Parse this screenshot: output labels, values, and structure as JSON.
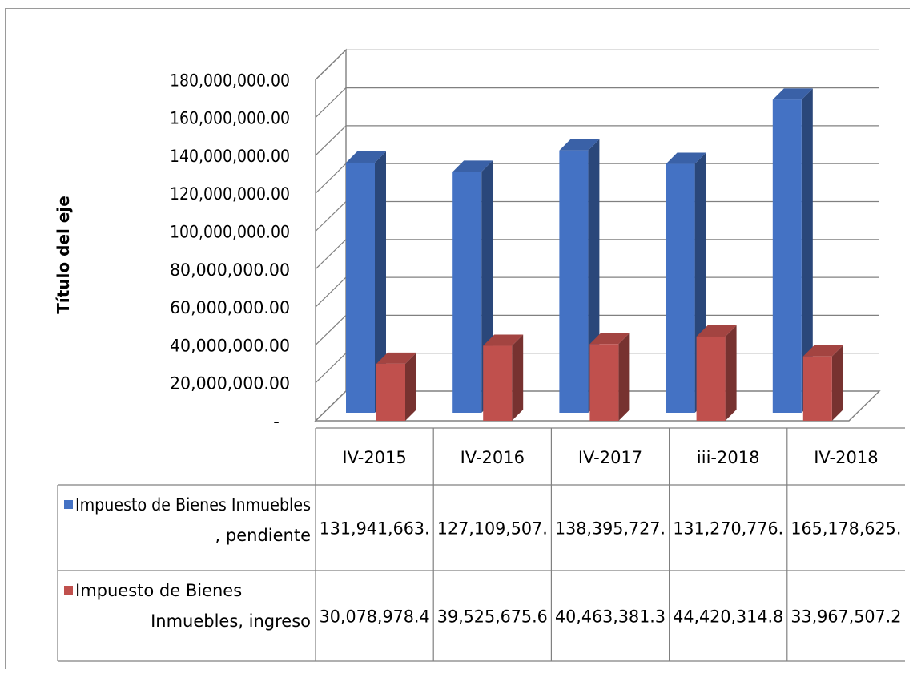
{
  "chart_data": {
    "type": "bar",
    "title": "",
    "xlabel": "",
    "ylabel": "Título del eje",
    "categories": [
      "IV-2015",
      "IV-2016",
      "IV-2017",
      "iii-2018",
      "IV-2018"
    ],
    "series": [
      {
        "name": "Impuesto de Bienes Inmuebles , pendiente",
        "legend_lines": [
          "Impuesto de Bienes Inmuebles",
          ", pendiente"
        ],
        "color": "#4472C4",
        "values": [
          131941663,
          127109507,
          138395727,
          131270776,
          165178625
        ],
        "table_labels": [
          "131,941,663.",
          "127,109,507.",
          "138,395,727.",
          "131,270,776.",
          "165,178,625."
        ]
      },
      {
        "name": "Impuesto de Bienes Inmuebles, ingreso",
        "legend_lines": [
          "Impuesto de Bienes",
          "Inmuebles, ingreso"
        ],
        "color": "#C0504D",
        "values": [
          30078978.4,
          39525675.6,
          40463381.3,
          44420314.8,
          33967507.2
        ],
        "table_labels": [
          "30,078,978.4",
          "39,525,675.6",
          "40,463,381.3",
          "44,420,314.8",
          "33,967,507.2"
        ]
      }
    ],
    "ylim": [
      0,
      180000000
    ],
    "yticks": [
      0,
      20000000,
      40000000,
      60000000,
      80000000,
      100000000,
      120000000,
      140000000,
      160000000,
      180000000
    ],
    "ytick_labels": [
      "-",
      "20,000,000.00",
      "40,000,000.00",
      "60,000,000.00",
      "80,000,000.00",
      "100,000,000.00",
      "120,000,000.00",
      "140,000,000.00",
      "160,000,000.00",
      "180,000,000.00"
    ],
    "grid": true,
    "legend": "data-table",
    "style": "3d-clustered-column"
  }
}
